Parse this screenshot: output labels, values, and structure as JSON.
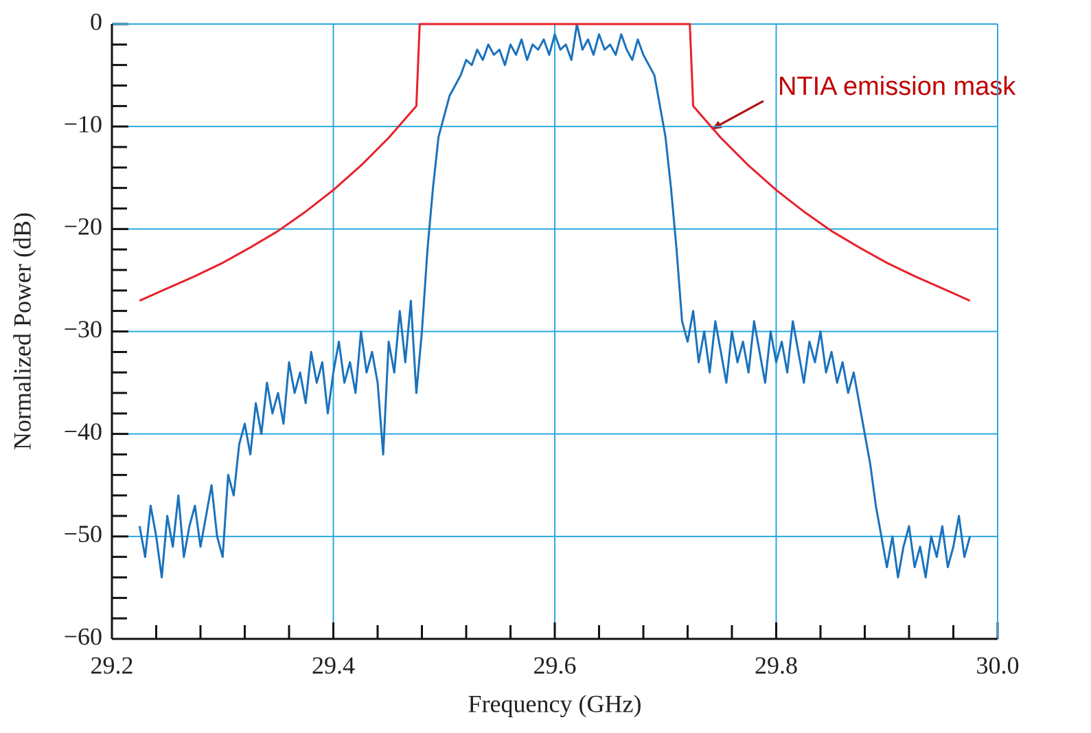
{
  "chart_data": {
    "type": "line",
    "xlabel": "Frequency (GHz)",
    "ylabel": "Normalized Power (dB)",
    "annotations": [
      {
        "text": "NTIA emission mask"
      }
    ],
    "xlim": [
      29.2,
      30
    ],
    "ylim": [
      -60,
      0
    ],
    "xticks": [
      29.2,
      29.4,
      29.6,
      29.8,
      {
        "value": 30,
        "label": "30.0"
      }
    ],
    "yticks": [
      {
        "value": -60,
        "label": "−60"
      },
      {
        "value": -50,
        "label": "−50"
      },
      {
        "value": -40,
        "label": "−40"
      },
      {
        "value": -30,
        "label": "−30"
      },
      {
        "value": -20,
        "label": "−20"
      },
      {
        "value": -10,
        "label": "−10"
      },
      0
    ],
    "xminor_ticks": [
      29.24,
      29.28,
      29.32,
      29.36,
      29.44,
      29.48,
      29.52,
      29.56,
      29.64,
      29.68,
      29.72,
      29.76,
      29.84,
      29.88,
      29.92,
      29.96
    ],
    "yminor_ticks": [
      -58,
      -56,
      -54,
      -52,
      -48,
      -46,
      -44,
      -42,
      -38,
      -36,
      -34,
      -32,
      -28,
      -26,
      -24,
      -22,
      -18,
      -16,
      -14,
      -12,
      -8,
      -6,
      -4,
      -2
    ],
    "grid": true,
    "grid_color": "#29a8e0",
    "series": [
      {
        "color": "#1a72bd",
        "x": [
          29.225,
          29.23,
          29.235,
          29.24,
          29.245,
          29.25,
          29.255,
          29.26,
          29.265,
          29.27,
          29.275,
          29.28,
          29.285,
          29.29,
          29.295,
          29.3,
          29.305,
          29.31,
          29.315,
          29.32,
          29.325,
          29.33,
          29.335,
          29.34,
          29.345,
          29.35,
          29.355,
          29.36,
          29.365,
          29.37,
          29.375,
          29.38,
          29.385,
          29.39,
          29.395,
          29.4,
          29.405,
          29.41,
          29.415,
          29.42,
          29.425,
          29.43,
          29.435,
          29.44,
          29.445,
          29.45,
          29.455,
          29.46,
          29.465,
          29.47,
          29.475,
          29.48,
          29.485,
          29.49,
          29.495,
          29.5,
          29.505,
          29.51,
          29.515,
          29.52,
          29.525,
          29.53,
          29.535,
          29.54,
          29.545,
          29.55,
          29.555,
          29.56,
          29.565,
          29.57,
          29.575,
          29.58,
          29.585,
          29.59,
          29.595,
          29.6,
          29.605,
          29.61,
          29.615,
          29.62,
          29.625,
          29.63,
          29.635,
          29.64,
          29.645,
          29.65,
          29.655,
          29.66,
          29.665,
          29.67,
          29.675,
          29.68,
          29.685,
          29.69,
          29.695,
          29.7,
          29.705,
          29.71,
          29.715,
          29.72,
          29.725,
          29.73,
          29.735,
          29.74,
          29.745,
          29.75,
          29.755,
          29.76,
          29.765,
          29.77,
          29.775,
          29.78,
          29.785,
          29.79,
          29.795,
          29.8,
          29.805,
          29.81,
          29.815,
          29.82,
          29.825,
          29.83,
          29.835,
          29.84,
          29.845,
          29.85,
          29.855,
          29.86,
          29.865,
          29.87,
          29.875,
          29.88,
          29.885,
          29.89,
          29.895,
          29.9,
          29.905,
          29.91,
          29.915,
          29.92,
          29.925,
          29.93,
          29.935,
          29.94,
          29.945,
          29.95,
          29.955,
          29.96,
          29.965,
          29.97,
          29.975
        ],
        "values": [
          -49,
          -52,
          -47,
          -50,
          -54,
          -48,
          -51,
          -46,
          -52,
          -49,
          -47,
          -51,
          -48,
          -45,
          -50,
          -52,
          -44,
          -46,
          -41,
          -39,
          -42,
          -37,
          -40,
          -35,
          -38,
          -36,
          -39,
          -33,
          -36,
          -34,
          -37,
          -32,
          -35,
          -33,
          -38,
          -34,
          -31,
          -35,
          -33,
          -36,
          -30,
          -34,
          -32,
          -35,
          -42,
          -31,
          -34,
          -28,
          -33,
          -27,
          -36,
          -30,
          -22,
          -16,
          -11,
          -9,
          -7,
          -6,
          -5,
          -3.5,
          -4,
          -2.5,
          -3.5,
          -2,
          -3,
          -2.5,
          -4,
          -2,
          -3,
          -1.5,
          -3.5,
          -2,
          -2.5,
          -1.5,
          -3,
          -1,
          -2.5,
          -2,
          -3.5,
          0,
          -2.5,
          -1.5,
          -3,
          -1,
          -2.5,
          -2,
          -3,
          -1,
          -2.5,
          -3.5,
          -1.5,
          -3,
          -4,
          -5,
          -8,
          -11,
          -16,
          -22,
          -29,
          -31,
          -28,
          -33,
          -30,
          -34,
          -29,
          -32,
          -35,
          -30,
          -33,
          -31,
          -34,
          -29,
          -32,
          -35,
          -30,
          -33,
          -31,
          -34,
          -29,
          -32,
          -35,
          -31,
          -33,
          -30,
          -34,
          -32,
          -35,
          -33,
          -36,
          -34,
          -37,
          -40,
          -43,
          -47,
          -50,
          -53,
          -50,
          -54,
          -51,
          -49,
          -53,
          -51,
          -54,
          -50,
          -52,
          -49,
          -53,
          -51,
          -48,
          -52,
          -50
        ]
      },
      {
        "color": "#e8202a",
        "x": [
          29.225,
          29.25,
          29.275,
          29.3,
          29.325,
          29.35,
          29.375,
          29.4,
          29.425,
          29.45,
          29.475,
          29.478,
          29.722,
          29.725,
          29.75,
          29.775,
          29.8,
          29.825,
          29.85,
          29.875,
          29.9,
          29.925,
          29.95,
          29.975
        ],
        "values": [
          -27,
          -25.8,
          -24.6,
          -23.3,
          -21.8,
          -20.2,
          -18.3,
          -16.2,
          -13.8,
          -11.1,
          -8,
          0,
          0,
          -8,
          -11.1,
          -13.8,
          -16.2,
          -18.3,
          -20.2,
          -21.8,
          -23.3,
          -24.6,
          -25.8,
          -27
        ]
      }
    ]
  }
}
